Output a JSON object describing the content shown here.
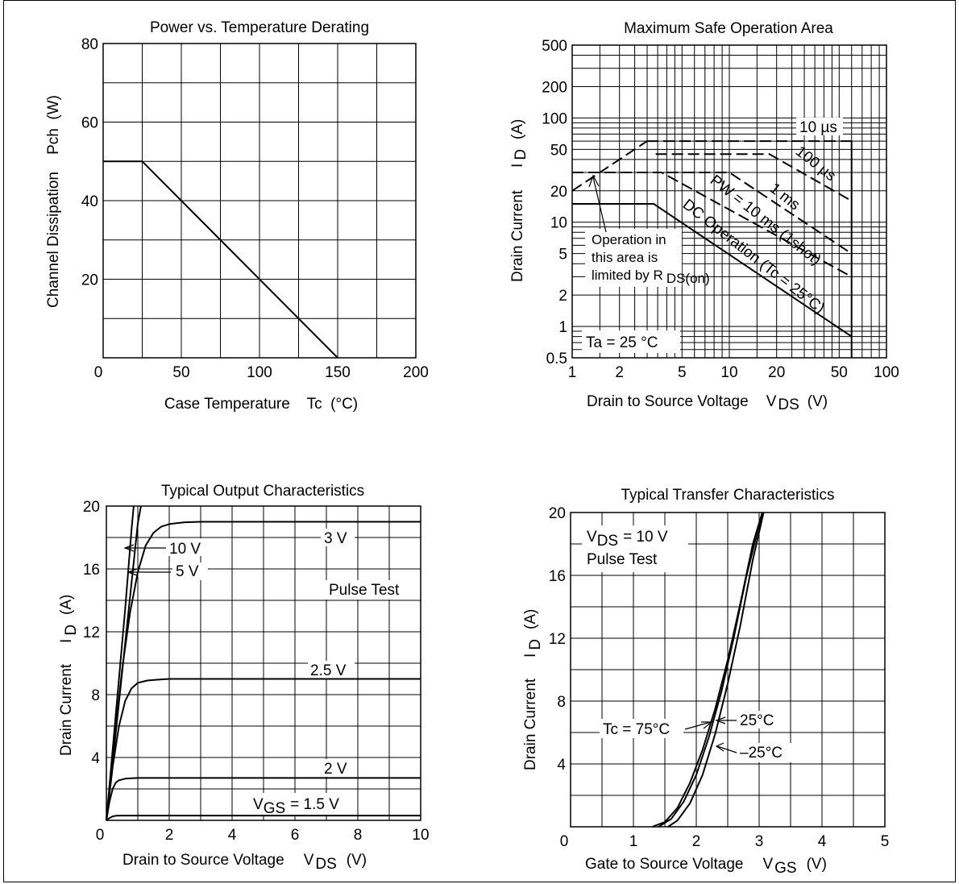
{
  "chart_data": [
    {
      "type": "line",
      "title": "Power vs. Temperature Derating",
      "xlabel": "Case Temperature    Tc  (°C)",
      "ylabel": "Channel Dissipation    Pch  (W)",
      "xlim": [
        0,
        200
      ],
      "ylim": [
        0,
        80
      ],
      "grid": true,
      "x_ticks": [
        "0",
        "50",
        "100",
        "150",
        "200"
      ],
      "y_ticks": [
        "20",
        "40",
        "60",
        "80"
      ],
      "series": [
        {
          "x": [
            0,
            25,
            150
          ],
          "y": [
            50,
            50,
            0
          ]
        }
      ]
    },
    {
      "type": "line",
      "title": "Maximum Safe Operation Area",
      "xlabel": "Drain to Source Voltage",
      "xlabel_symbol": "V",
      "xlabel_sub": "DS",
      "xlabel_unit": "(V)",
      "ylabel": "Drain Current",
      "ylabel_symbol": "I",
      "ylabel_sub": "D",
      "ylabel_unit": "(A)",
      "x_scale": "log",
      "y_scale": "log",
      "xlim": [
        1,
        100
      ],
      "ylim": [
        0.5,
        500
      ],
      "grid": true,
      "x_ticks": [
        "1",
        "2",
        "5",
        "10",
        "20",
        "50",
        "100"
      ],
      "y_ticks": [
        "0.5",
        "1",
        "2",
        "5",
        "10",
        "20",
        "50",
        "100",
        "200",
        "500"
      ],
      "series": [
        {
          "name": "DC Operation (Tc = 25°C)",
          "dash": false,
          "x": [
            1,
            3.3,
            60
          ],
          "y": [
            15,
            15,
            0.8
          ]
        },
        {
          "name": "PW = 10 ms (1shot)",
          "dash": true,
          "x": [
            1,
            3.7,
            60
          ],
          "y": [
            30,
            30,
            3
          ]
        },
        {
          "name": "1 ms",
          "dash": true,
          "x": [
            4,
            10,
            60
          ],
          "y": [
            30,
            30,
            5
          ]
        },
        {
          "name": "100 µs",
          "dash": true,
          "x": [
            3.4,
            18,
            60
          ],
          "y": [
            45,
            45,
            16
          ]
        },
        {
          "name": "10 µs",
          "dash": true,
          "x": [
            3,
            60
          ],
          "y": [
            60,
            60
          ]
        },
        {
          "name": "R DS(on) limit",
          "dash": true,
          "x": [
            1,
            3
          ],
          "y": [
            20,
            60
          ]
        },
        {
          "name": "",
          "dash": false,
          "x": [
            60,
            60
          ],
          "y": [
            0.5,
            60
          ]
        }
      ],
      "annotations": {
        "area_note": [
          "Operation in",
          "this area is",
          "limited by R"
        ],
        "area_note_sub": "DS(on)",
        "ambient": "Ta = 25 °C",
        "label_10us": "10 µs",
        "label_100us": "100 µs",
        "label_1ms": "1 ms",
        "label_pw": "PW = 10 ms (1shot)",
        "label_dc": "DC Operation (Tc = 25°C)"
      }
    },
    {
      "type": "line",
      "title": "Typical Output Characteristics",
      "xlabel": "Drain to Source Voltage",
      "xlabel_symbol": "V",
      "xlabel_sub": "DS",
      "xlabel_unit": "(V)",
      "ylabel": "Drain Current",
      "ylabel_symbol": "I",
      "ylabel_sub": "D",
      "ylabel_unit": "(A)",
      "xlim": [
        0,
        10
      ],
      "ylim": [
        0,
        20
      ],
      "grid": true,
      "x_ticks": [
        "0",
        "2",
        "4",
        "6",
        "8",
        "10"
      ],
      "y_ticks": [
        "4",
        "8",
        "12",
        "16",
        "20"
      ],
      "series": [
        {
          "name": "10 V",
          "x": [
            0,
            0.2,
            0.4,
            0.6,
            0.8,
            0.87
          ],
          "y": [
            0,
            4.5,
            9,
            13.5,
            18.5,
            20
          ]
        },
        {
          "name": "5 V",
          "x": [
            0,
            0.2,
            0.4,
            0.6,
            0.8,
            1.0,
            1.1
          ],
          "y": [
            0,
            3.7,
            7.5,
            11.3,
            15.1,
            18.9,
            20
          ]
        },
        {
          "name": "3 V",
          "x": [
            0,
            0.25,
            0.5,
            0.75,
            1,
            1.25,
            1.5,
            1.75,
            2,
            2.25,
            2.5,
            3,
            4,
            10
          ],
          "y": [
            0,
            5,
            9.6,
            13.2,
            15.8,
            17.5,
            18.3,
            18.7,
            18.85,
            18.92,
            18.97,
            19,
            19,
            19
          ]
        },
        {
          "name": "2.5 V",
          "x": [
            0,
            0.2,
            0.4,
            0.6,
            0.8,
            1,
            1.3,
            1.6,
            2,
            3,
            10
          ],
          "y": [
            0,
            3.4,
            6,
            7.6,
            8.4,
            8.75,
            8.9,
            8.95,
            9,
            9,
            9
          ]
        },
        {
          "name": "2 V",
          "x": [
            0,
            0.1,
            0.2,
            0.3,
            0.4,
            0.6,
            0.8,
            1,
            2,
            10
          ],
          "y": [
            0,
            1.2,
            2,
            2.4,
            2.55,
            2.65,
            2.68,
            2.7,
            2.7,
            2.7
          ]
        },
        {
          "name": "1.5 V",
          "x": [
            0,
            0.1,
            0.2,
            0.3,
            0.5,
            1,
            10
          ],
          "y": [
            0,
            0.15,
            0.25,
            0.29,
            0.3,
            0.3,
            0.3
          ]
        }
      ],
      "labels": {
        "vgs_3": "3 V",
        "vgs_25": "2.5 V",
        "vgs_2": "2 V",
        "vgs_15_pre": "V",
        "vgs_15_sub": "GS",
        "vgs_15_post": "= 1.5 V",
        "vgs_10": "10 V",
        "vgs_5": "5 V",
        "pulse": "Pulse Test"
      }
    },
    {
      "type": "line",
      "title": "Typical Transfer Characteristics",
      "xlabel": "Gate to Source Voltage",
      "xlabel_symbol": "V",
      "xlabel_sub": "GS",
      "xlabel_unit": "(V)",
      "ylabel": "Drain Current",
      "ylabel_symbol": "I",
      "ylabel_sub": "D",
      "ylabel_unit": "(A)",
      "xlim": [
        0,
        5
      ],
      "ylim": [
        0,
        20
      ],
      "grid": true,
      "x_ticks": [
        "0",
        "1",
        "2",
        "3",
        "4",
        "5"
      ],
      "y_ticks": [
        "4",
        "8",
        "12",
        "16",
        "20"
      ],
      "series": [
        {
          "name": "Tc = 75°C",
          "x": [
            1.3,
            1.5,
            1.7,
            1.9,
            2.1,
            2.3,
            2.5,
            2.7,
            2.9,
            3.05
          ],
          "y": [
            0,
            0.3,
            1.2,
            2.8,
            4.9,
            7.5,
            10.6,
            14.2,
            18,
            20
          ]
        },
        {
          "name": "25°C",
          "x": [
            1.4,
            1.6,
            1.8,
            2,
            2.2,
            2.4,
            2.6,
            2.8,
            3.05
          ],
          "y": [
            0,
            0.5,
            1.6,
            3.3,
            5.7,
            8.6,
            12.1,
            16,
            20
          ]
        },
        {
          "name": "–25°C",
          "x": [
            1.55,
            1.7,
            1.9,
            2.1,
            2.3,
            2.5,
            2.7,
            2.9,
            3.07
          ],
          "y": [
            0,
            0.4,
            1.5,
            3.3,
            5.9,
            9.1,
            12.8,
            17,
            20
          ]
        }
      ],
      "labels": {
        "vds_pre": "V",
        "vds_sub": "DS",
        "vds_post": "= 10 V",
        "pulse": "Pulse Test",
        "t75": "Tc = 75°C",
        "t25": "25°C",
        "tm25": "–25°C"
      }
    }
  ]
}
